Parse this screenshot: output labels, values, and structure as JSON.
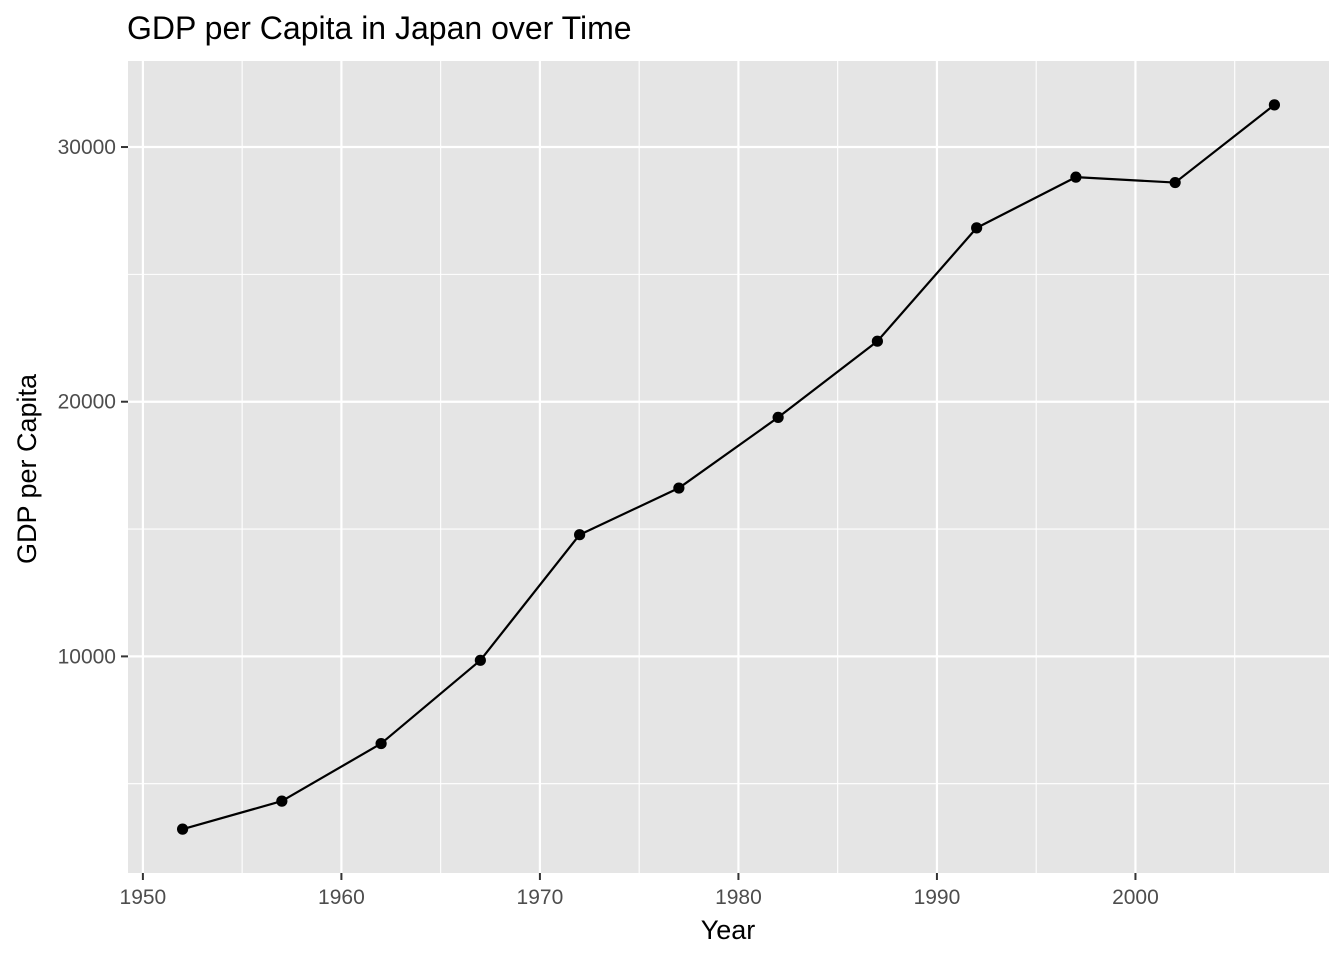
{
  "chart_data": {
    "type": "line",
    "title": "GDP per Capita in Japan over Time",
    "xlabel": "Year",
    "ylabel": "GDP per Capita",
    "x": [
      1952,
      1957,
      1962,
      1967,
      1972,
      1977,
      1982,
      1987,
      1992,
      1997,
      2002,
      2007
    ],
    "series": [
      {
        "values": [
          3217,
          4318,
          6577,
          9847,
          14778,
          16610,
          19384,
          22376,
          26825,
          28817,
          28605,
          31656
        ]
      }
    ],
    "xlim": [
      1949.25,
      2009.75
    ],
    "ylim": [
      1495,
      33378
    ],
    "x_ticks": [
      1950,
      1960,
      1970,
      1980,
      1990,
      2000
    ],
    "x_tick_labels": [
      "1950",
      "1960",
      "1970",
      "1980",
      "1990",
      "2000"
    ],
    "x_minor_ticks": [
      1955,
      1965,
      1975,
      1985,
      1995,
      2005
    ],
    "y_ticks": [
      10000,
      20000,
      30000
    ],
    "y_tick_labels": [
      "10000",
      "20000",
      "30000"
    ],
    "y_minor_ticks": [
      5000,
      15000,
      25000
    ],
    "grid": true,
    "legend": "none",
    "colors": {
      "panel": "#e5e5e5",
      "grid": "#ffffff",
      "line": "#000000",
      "tick_text": "#4d4d4d"
    }
  }
}
